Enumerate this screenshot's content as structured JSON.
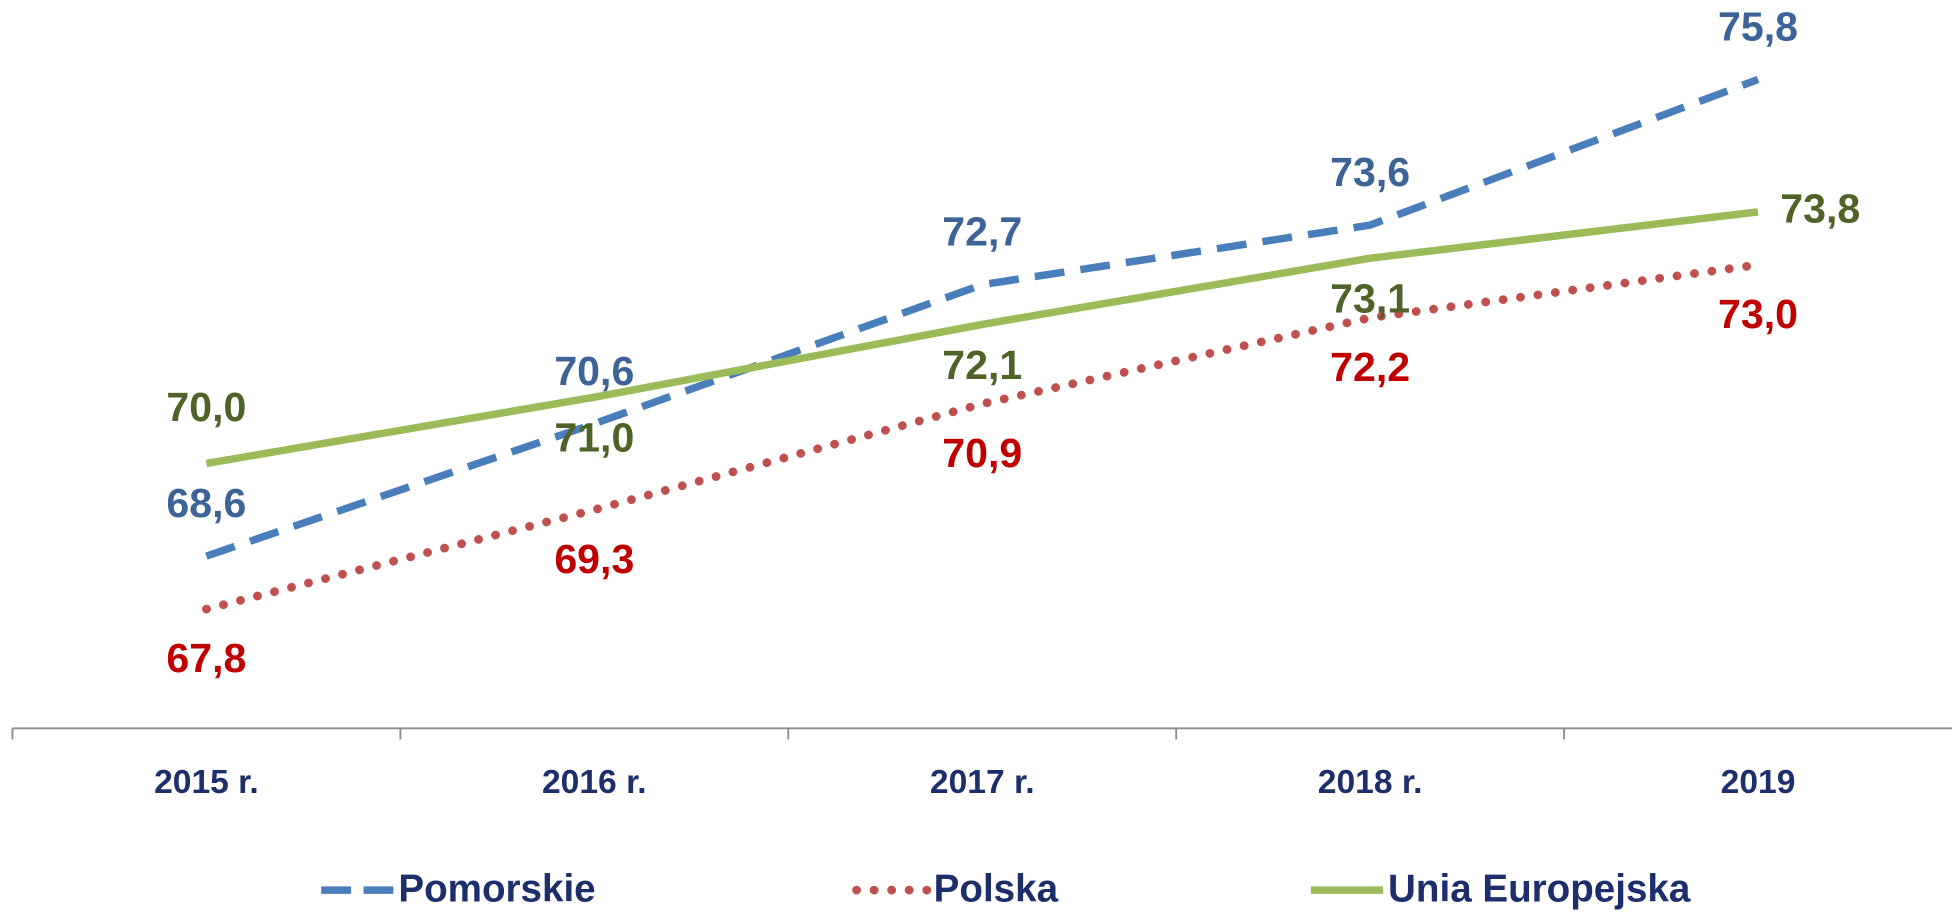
{
  "chart_data": {
    "type": "line",
    "categories": [
      "2015 r.",
      "2016 r.",
      "2017 r.",
      "2018 r.",
      "2019"
    ],
    "series": [
      {
        "name": "Pomorskie",
        "color": "#4a7ebb",
        "label_color": "#3d6397",
        "style": "dashed",
        "values": [
          68.6,
          70.6,
          72.7,
          73.6,
          75.8
        ],
        "value_labels": [
          "68,6",
          "70,6",
          "72,7",
          "73,6",
          "75,8"
        ]
      },
      {
        "name": "Polska",
        "color": "#c0504d",
        "label_color": "#c00000",
        "style": "dotted",
        "values": [
          67.8,
          69.3,
          70.9,
          72.2,
          73.0
        ],
        "value_labels": [
          "67,8",
          "69,3",
          "70,9",
          "72,2",
          "73,0"
        ]
      },
      {
        "name": "Unia Europejska",
        "color": "#9bbb59",
        "label_color": "#4f6228",
        "style": "solid",
        "values": [
          70.0,
          71.0,
          72.1,
          73.1,
          73.8
        ],
        "value_labels": [
          "70,0",
          "71,0",
          "72,1",
          "73,1",
          "73,8"
        ]
      }
    ],
    "ylim": [
      66,
      77
    ],
    "grid": false,
    "legend": "bottom"
  }
}
